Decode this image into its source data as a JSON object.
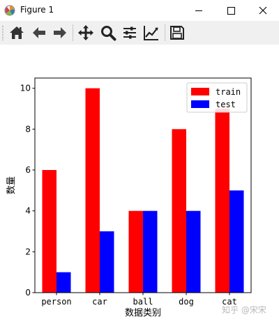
{
  "window": {
    "title": "Figure 1"
  },
  "toolbar": {
    "icons": [
      "home-icon",
      "back-arrow-icon",
      "forward-arrow-icon",
      "pan-icon",
      "zoom-icon",
      "subplots-icon",
      "edit-curve-icon",
      "save-icon"
    ]
  },
  "watermark": "知乎 @宋宋",
  "colors": {
    "train": "#ff0000",
    "test": "#0000ff"
  },
  "chart_data": {
    "type": "bar",
    "categories": [
      "person",
      "car",
      "ball",
      "dog",
      "cat"
    ],
    "series": [
      {
        "name": "train",
        "values": [
          6,
          10,
          4,
          8,
          9
        ]
      },
      {
        "name": "test",
        "values": [
          1,
          3,
          4,
          4,
          5
        ]
      }
    ],
    "xlabel": "数据类别",
    "ylabel": "数量",
    "ylim": [
      0,
      10.5
    ],
    "yticks": [
      0,
      2,
      4,
      6,
      8,
      10
    ],
    "grid": false,
    "legend": "top-right"
  }
}
